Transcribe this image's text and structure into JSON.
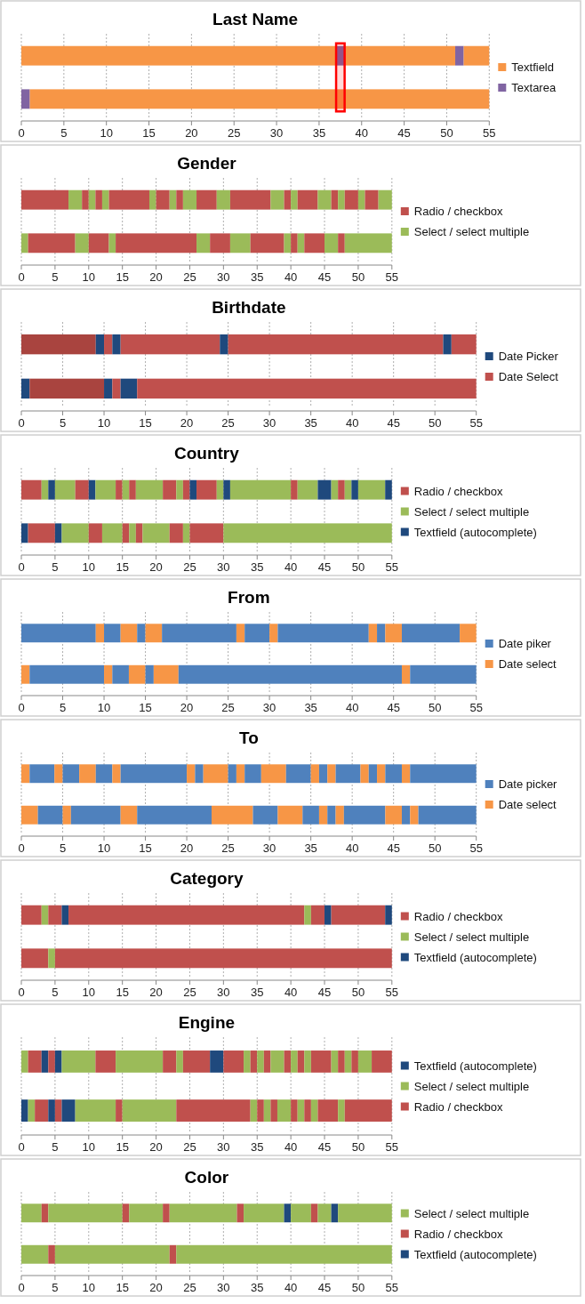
{
  "chart_data": [
    {
      "type": "bar",
      "title": "Last Name",
      "orientation": "horizontal",
      "stacked": true,
      "categories": [
        null,
        null
      ],
      "xlim": [
        0,
        55
      ],
      "xticks": [
        0,
        5,
        10,
        15,
        20,
        25,
        30,
        35,
        40,
        45,
        50,
        55
      ],
      "grid": "x",
      "legend": "right",
      "bands": [
        {
          "axis": "x",
          "from": 37,
          "to": 38,
          "color": "#ff0000"
        }
      ],
      "series": [
        {
          "name": "Textfield",
          "color": "#f79646",
          "values": [
            null,
            null
          ]
        },
        {
          "name": "Textarea",
          "color": "#8064a2",
          "values": [
            null,
            null
          ]
        },
        {
          "color": "#f79646",
          "values": [
            37,
            null
          ]
        },
        {
          "color": "#8064a2",
          "values": [
            1,
            null
          ]
        },
        {
          "color": "#f79646",
          "values": [
            13,
            null
          ]
        },
        {
          "color": "#8064a2",
          "values": [
            1,
            null
          ]
        },
        {
          "color": "#f79646",
          "values": [
            3,
            null
          ]
        },
        {
          "color": "#8064a2",
          "values": [
            null,
            1
          ]
        },
        {
          "color": "#f79646",
          "values": [
            null,
            54
          ]
        }
      ]
    },
    {
      "type": "bar",
      "title": "Gender",
      "orientation": "horizontal",
      "stacked": true,
      "categories": [
        null,
        null
      ],
      "xlim": [
        0,
        55
      ],
      "xticks": [
        0,
        5,
        10,
        15,
        20,
        25,
        30,
        35,
        40,
        45,
        50,
        55
      ],
      "grid": "x",
      "legend": "right",
      "series": [
        {
          "name": "Radio / checkbox",
          "color": "#c0504d",
          "values": [
            null,
            null
          ]
        },
        {
          "name": "Select / select multiple",
          "color": "#9bbb59",
          "values": [
            null,
            null
          ]
        },
        {
          "color": "#c0504d",
          "values": [
            7,
            null
          ]
        },
        {
          "color": "#9bbb59",
          "values": [
            2,
            null
          ]
        },
        {
          "color": "#c0504d",
          "values": [
            1,
            null
          ]
        },
        {
          "color": "#9bbb59",
          "values": [
            1,
            null
          ]
        },
        {
          "color": "#c0504d",
          "values": [
            1,
            null
          ]
        },
        {
          "color": "#9bbb59",
          "values": [
            1,
            null
          ]
        },
        {
          "color": "#c0504d",
          "values": [
            6,
            null
          ]
        },
        {
          "color": "#9bbb59",
          "values": [
            1,
            null
          ]
        },
        {
          "color": "#c0504d",
          "values": [
            2,
            null
          ]
        },
        {
          "color": "#9bbb59",
          "values": [
            1,
            null
          ]
        },
        {
          "color": "#c0504d",
          "values": [
            1,
            null
          ]
        },
        {
          "color": "#9bbb59",
          "values": [
            2,
            null
          ]
        },
        {
          "color": "#c0504d",
          "values": [
            3,
            null
          ]
        },
        {
          "color": "#9bbb59",
          "values": [
            2,
            null
          ]
        },
        {
          "color": "#c0504d",
          "values": [
            6,
            null
          ]
        },
        {
          "color": "#9bbb59",
          "values": [
            2,
            null
          ]
        },
        {
          "color": "#c0504d",
          "values": [
            1,
            null
          ]
        },
        {
          "color": "#9bbb59",
          "values": [
            1,
            null
          ]
        },
        {
          "color": "#c0504d",
          "values": [
            3,
            null
          ]
        },
        {
          "color": "#9bbb59",
          "values": [
            2,
            null
          ]
        },
        {
          "color": "#c0504d",
          "values": [
            1,
            null
          ]
        },
        {
          "color": "#9bbb59",
          "values": [
            1,
            null
          ]
        },
        {
          "color": "#c0504d",
          "values": [
            2,
            null
          ]
        },
        {
          "color": "#9bbb59",
          "values": [
            1,
            null
          ]
        },
        {
          "color": "#c0504d",
          "values": [
            2,
            null
          ]
        },
        {
          "color": "#9bbb59",
          "values": [
            2,
            null
          ]
        },
        {
          "color": "#9bbb59",
          "values": [
            null,
            1
          ]
        },
        {
          "color": "#c0504d",
          "values": [
            null,
            7
          ]
        },
        {
          "color": "#9bbb59",
          "values": [
            null,
            2
          ]
        },
        {
          "color": "#c0504d",
          "values": [
            null,
            3
          ]
        },
        {
          "color": "#9bbb59",
          "values": [
            null,
            1
          ]
        },
        {
          "color": "#c0504d",
          "values": [
            null,
            12
          ]
        },
        {
          "color": "#9bbb59",
          "values": [
            null,
            2
          ]
        },
        {
          "color": "#c0504d",
          "values": [
            null,
            3
          ]
        },
        {
          "color": "#9bbb59",
          "values": [
            null,
            3
          ]
        },
        {
          "color": "#c0504d",
          "values": [
            null,
            5
          ]
        },
        {
          "color": "#9bbb59",
          "values": [
            null,
            1
          ]
        },
        {
          "color": "#c0504d",
          "values": [
            null,
            1
          ]
        },
        {
          "color": "#9bbb59",
          "values": [
            null,
            1
          ]
        },
        {
          "color": "#c0504d",
          "values": [
            null,
            3
          ]
        },
        {
          "color": "#9bbb59",
          "values": [
            null,
            2
          ]
        },
        {
          "color": "#c0504d",
          "values": [
            null,
            1
          ]
        },
        {
          "color": "#9bbb59",
          "values": [
            null,
            7
          ]
        }
      ]
    },
    {
      "type": "bar",
      "title": "Birthdate",
      "orientation": "horizontal",
      "stacked": true,
      "categories": [
        null,
        null
      ],
      "xlim": [
        0,
        55
      ],
      "xticks": [
        0,
        5,
        10,
        15,
        20,
        25,
        30,
        35,
        40,
        45,
        50,
        55
      ],
      "grid": "x",
      "legend": "right",
      "series": [
        {
          "name": "Date Picker",
          "color": "#1f497d",
          "values": [
            null,
            null
          ]
        },
        {
          "name": "Date Select",
          "color": "#c0504d",
          "values": [
            null,
            null
          ]
        },
        {
          "color": "#a9443f",
          "values": [
            9,
            null
          ]
        },
        {
          "color": "#1f497d",
          "values": [
            1,
            null
          ]
        },
        {
          "color": "#c0504d",
          "values": [
            1,
            null
          ]
        },
        {
          "color": "#1f497d",
          "values": [
            1,
            null
          ]
        },
        {
          "color": "#c0504d",
          "values": [
            12,
            null
          ]
        },
        {
          "color": "#1f497d",
          "values": [
            1,
            null
          ]
        },
        {
          "color": "#c0504d",
          "values": [
            26,
            null
          ]
        },
        {
          "color": "#1f497d",
          "values": [
            1,
            null
          ]
        },
        {
          "color": "#c0504d",
          "values": [
            3,
            null
          ]
        },
        {
          "color": "#1f497d",
          "values": [
            null,
            1
          ]
        },
        {
          "color": "#a9443f",
          "values": [
            null,
            9
          ]
        },
        {
          "color": "#1f497d",
          "values": [
            null,
            1
          ]
        },
        {
          "color": "#c0504d",
          "values": [
            null,
            1
          ]
        },
        {
          "color": "#1f497d",
          "values": [
            null,
            2
          ]
        },
        {
          "color": "#c0504d",
          "values": [
            null,
            41
          ]
        }
      ]
    },
    {
      "type": "bar",
      "title": "Country",
      "orientation": "horizontal",
      "stacked": true,
      "categories": [
        null,
        null
      ],
      "xlim": [
        0,
        55
      ],
      "xticks": [
        0,
        5,
        10,
        15,
        20,
        25,
        30,
        35,
        40,
        45,
        50,
        55
      ],
      "grid": "x",
      "legend": "right",
      "series": [
        {
          "name": "Radio / checkbox",
          "color": "#c0504d",
          "values": [
            null,
            null
          ]
        },
        {
          "name": "Select / select multiple",
          "color": "#9bbb59",
          "values": [
            null,
            null
          ]
        },
        {
          "name": "Textfield (autocomplete)",
          "color": "#1f497d",
          "values": [
            null,
            null
          ]
        },
        {
          "color": "#c0504d",
          "values": [
            3,
            null
          ]
        },
        {
          "color": "#9bbb59",
          "values": [
            1,
            null
          ]
        },
        {
          "color": "#1f497d",
          "values": [
            1,
            null
          ]
        },
        {
          "color": "#9bbb59",
          "values": [
            3,
            null
          ]
        },
        {
          "color": "#c0504d",
          "values": [
            2,
            null
          ]
        },
        {
          "color": "#1f497d",
          "values": [
            1,
            null
          ]
        },
        {
          "color": "#9bbb59",
          "values": [
            3,
            null
          ]
        },
        {
          "color": "#c0504d",
          "values": [
            1,
            null
          ]
        },
        {
          "color": "#9bbb59",
          "values": [
            1,
            null
          ]
        },
        {
          "color": "#c0504d",
          "values": [
            1,
            null
          ]
        },
        {
          "color": "#9bbb59",
          "values": [
            4,
            null
          ]
        },
        {
          "color": "#c0504d",
          "values": [
            2,
            null
          ]
        },
        {
          "color": "#9bbb59",
          "values": [
            1,
            null
          ]
        },
        {
          "color": "#c0504d",
          "values": [
            1,
            null
          ]
        },
        {
          "color": "#1f497d",
          "values": [
            1,
            null
          ]
        },
        {
          "color": "#c0504d",
          "values": [
            3,
            null
          ]
        },
        {
          "color": "#9bbb59",
          "values": [
            1,
            null
          ]
        },
        {
          "color": "#1f497d",
          "values": [
            1,
            null
          ]
        },
        {
          "color": "#9bbb59",
          "values": [
            9,
            null
          ]
        },
        {
          "color": "#c0504d",
          "values": [
            1,
            null
          ]
        },
        {
          "color": "#9bbb59",
          "values": [
            3,
            null
          ]
        },
        {
          "color": "#1f497d",
          "values": [
            2,
            null
          ]
        },
        {
          "color": "#9bbb59",
          "values": [
            1,
            null
          ]
        },
        {
          "color": "#c0504d",
          "values": [
            1,
            null
          ]
        },
        {
          "color": "#9bbb59",
          "values": [
            1,
            null
          ]
        },
        {
          "color": "#1f497d",
          "values": [
            1,
            null
          ]
        },
        {
          "color": "#9bbb59",
          "values": [
            4,
            null
          ]
        },
        {
          "color": "#1f497d",
          "values": [
            1,
            null
          ]
        },
        {
          "color": "#1f497d",
          "values": [
            null,
            1
          ]
        },
        {
          "color": "#c0504d",
          "values": [
            null,
            4
          ]
        },
        {
          "color": "#1f497d",
          "values": [
            null,
            1
          ]
        },
        {
          "color": "#9bbb59",
          "values": [
            null,
            4
          ]
        },
        {
          "color": "#c0504d",
          "values": [
            null,
            2
          ]
        },
        {
          "color": "#9bbb59",
          "values": [
            null,
            3
          ]
        },
        {
          "color": "#c0504d",
          "values": [
            null,
            1
          ]
        },
        {
          "color": "#9bbb59",
          "values": [
            null,
            1
          ]
        },
        {
          "color": "#c0504d",
          "values": [
            null,
            1
          ]
        },
        {
          "color": "#9bbb59",
          "values": [
            null,
            4
          ]
        },
        {
          "color": "#c0504d",
          "values": [
            null,
            2
          ]
        },
        {
          "color": "#9bbb59",
          "values": [
            null,
            1
          ]
        },
        {
          "color": "#c0504d",
          "values": [
            null,
            5
          ]
        },
        {
          "color": "#9bbb59",
          "values": [
            null,
            25
          ]
        }
      ]
    },
    {
      "type": "bar",
      "title": "From",
      "orientation": "horizontal",
      "stacked": true,
      "categories": [
        null,
        null
      ],
      "xlim": [
        0,
        55
      ],
      "xticks": [
        0,
        5,
        10,
        15,
        20,
        25,
        30,
        35,
        40,
        45,
        50,
        55
      ],
      "grid": "x",
      "legend": "right",
      "series": [
        {
          "name": "Date piker",
          "color": "#4f81bd",
          "values": [
            null,
            null
          ]
        },
        {
          "name": "Date select",
          "color": "#f79646",
          "values": [
            null,
            null
          ]
        },
        {
          "color": "#4f81bd",
          "values": [
            9,
            null
          ]
        },
        {
          "color": "#f79646",
          "values": [
            1,
            null
          ]
        },
        {
          "color": "#4f81bd",
          "values": [
            2,
            null
          ]
        },
        {
          "color": "#f79646",
          "values": [
            2,
            null
          ]
        },
        {
          "color": "#4f81bd",
          "values": [
            1,
            null
          ]
        },
        {
          "color": "#f79646",
          "values": [
            2,
            null
          ]
        },
        {
          "color": "#4f81bd",
          "values": [
            9,
            null
          ]
        },
        {
          "color": "#f79646",
          "values": [
            1,
            null
          ]
        },
        {
          "color": "#4f81bd",
          "values": [
            3,
            null
          ]
        },
        {
          "color": "#f79646",
          "values": [
            1,
            null
          ]
        },
        {
          "color": "#4f81bd",
          "values": [
            11,
            null
          ]
        },
        {
          "color": "#f79646",
          "values": [
            1,
            null
          ]
        },
        {
          "color": "#4f81bd",
          "values": [
            1,
            null
          ]
        },
        {
          "color": "#f79646",
          "values": [
            2,
            null
          ]
        },
        {
          "color": "#4f81bd",
          "values": [
            7,
            null
          ]
        },
        {
          "color": "#f79646",
          "values": [
            2,
            null
          ]
        },
        {
          "color": "#f79646",
          "values": [
            null,
            1
          ]
        },
        {
          "color": "#4f81bd",
          "values": [
            null,
            9
          ]
        },
        {
          "color": "#f79646",
          "values": [
            null,
            1
          ]
        },
        {
          "color": "#4f81bd",
          "values": [
            null,
            2
          ]
        },
        {
          "color": "#f79646",
          "values": [
            null,
            2
          ]
        },
        {
          "color": "#4f81bd",
          "values": [
            null,
            1
          ]
        },
        {
          "color": "#f79646",
          "values": [
            null,
            3
          ]
        },
        {
          "color": "#4f81bd",
          "values": [
            null,
            27
          ]
        },
        {
          "color": "#f79646",
          "values": [
            null,
            1
          ]
        },
        {
          "color": "#4f81bd",
          "values": [
            null,
            8
          ]
        }
      ]
    },
    {
      "type": "bar",
      "title": "To",
      "orientation": "horizontal",
      "stacked": true,
      "categories": [
        null,
        null
      ],
      "xlim": [
        0,
        55
      ],
      "xticks": [
        0,
        5,
        10,
        15,
        20,
        25,
        30,
        35,
        40,
        45,
        50,
        55
      ],
      "grid": "x",
      "legend": "right",
      "series": [
        {
          "name": "Date picker",
          "color": "#4f81bd",
          "values": [
            null,
            null
          ]
        },
        {
          "name": "Date select",
          "color": "#f79646",
          "values": [
            null,
            null
          ]
        },
        {
          "color": "#f79646",
          "values": [
            1,
            null
          ]
        },
        {
          "color": "#4f81bd",
          "values": [
            3,
            null
          ]
        },
        {
          "color": "#f79646",
          "values": [
            1,
            null
          ]
        },
        {
          "color": "#4f81bd",
          "values": [
            2,
            null
          ]
        },
        {
          "color": "#f79646",
          "values": [
            2,
            null
          ]
        },
        {
          "color": "#4f81bd",
          "values": [
            2,
            null
          ]
        },
        {
          "color": "#f79646",
          "values": [
            1,
            null
          ]
        },
        {
          "color": "#4f81bd",
          "values": [
            8,
            null
          ]
        },
        {
          "color": "#f79646",
          "values": [
            1,
            null
          ]
        },
        {
          "color": "#4f81bd",
          "values": [
            1,
            null
          ]
        },
        {
          "color": "#f79646",
          "values": [
            3,
            null
          ]
        },
        {
          "color": "#4f81bd",
          "values": [
            1,
            null
          ]
        },
        {
          "color": "#f79646",
          "values": [
            1,
            null
          ]
        },
        {
          "color": "#4f81bd",
          "values": [
            2,
            null
          ]
        },
        {
          "color": "#f79646",
          "values": [
            3,
            null
          ]
        },
        {
          "color": "#4f81bd",
          "values": [
            3,
            null
          ]
        },
        {
          "color": "#f79646",
          "values": [
            1,
            null
          ]
        },
        {
          "color": "#4f81bd",
          "values": [
            1,
            null
          ]
        },
        {
          "color": "#f79646",
          "values": [
            1,
            null
          ]
        },
        {
          "color": "#4f81bd",
          "values": [
            3,
            null
          ]
        },
        {
          "color": "#f79646",
          "values": [
            1,
            null
          ]
        },
        {
          "color": "#4f81bd",
          "values": [
            1,
            null
          ]
        },
        {
          "color": "#f79646",
          "values": [
            1,
            null
          ]
        },
        {
          "color": "#4f81bd",
          "values": [
            2,
            null
          ]
        },
        {
          "color": "#f79646",
          "values": [
            1,
            null
          ]
        },
        {
          "color": "#4f81bd",
          "values": [
            8,
            null
          ]
        },
        {
          "color": "#f79646",
          "values": [
            null,
            2
          ]
        },
        {
          "color": "#4f81bd",
          "values": [
            null,
            3
          ]
        },
        {
          "color": "#f79646",
          "values": [
            null,
            1
          ]
        },
        {
          "color": "#4f81bd",
          "values": [
            null,
            6
          ]
        },
        {
          "color": "#f79646",
          "values": [
            null,
            2
          ]
        },
        {
          "color": "#4f81bd",
          "values": [
            null,
            9
          ]
        },
        {
          "color": "#f79646",
          "values": [
            null,
            5
          ]
        },
        {
          "color": "#4f81bd",
          "values": [
            null,
            3
          ]
        },
        {
          "color": "#f79646",
          "values": [
            null,
            3
          ]
        },
        {
          "color": "#4f81bd",
          "values": [
            null,
            2
          ]
        },
        {
          "color": "#f79646",
          "values": [
            null,
            1
          ]
        },
        {
          "color": "#4f81bd",
          "values": [
            null,
            1
          ]
        },
        {
          "color": "#f79646",
          "values": [
            null,
            1
          ]
        },
        {
          "color": "#4f81bd",
          "values": [
            null,
            5
          ]
        },
        {
          "color": "#f79646",
          "values": [
            null,
            2
          ]
        },
        {
          "color": "#4f81bd",
          "values": [
            null,
            1
          ]
        },
        {
          "color": "#f79646",
          "values": [
            null,
            1
          ]
        },
        {
          "color": "#4f81bd",
          "values": [
            null,
            7
          ]
        }
      ]
    },
    {
      "type": "bar",
      "title": "Category",
      "orientation": "horizontal",
      "stacked": true,
      "categories": [
        null,
        null
      ],
      "xlim": [
        0,
        55
      ],
      "xticks": [
        0,
        5,
        10,
        15,
        20,
        25,
        30,
        35,
        40,
        45,
        50,
        55
      ],
      "grid": "x",
      "legend": "right",
      "series": [
        {
          "name": "Radio / checkbox",
          "color": "#c0504d",
          "values": [
            null,
            null
          ]
        },
        {
          "name": "Select / select multiple",
          "color": "#9bbb59",
          "values": [
            null,
            null
          ]
        },
        {
          "name": "Textfield (autocomplete)",
          "color": "#1f497d",
          "values": [
            null,
            null
          ]
        },
        {
          "color": "#c0504d",
          "values": [
            3,
            null
          ]
        },
        {
          "color": "#9bbb59",
          "values": [
            1,
            null
          ]
        },
        {
          "color": "#c0504d",
          "values": [
            2,
            null
          ]
        },
        {
          "color": "#1f497d",
          "values": [
            1,
            null
          ]
        },
        {
          "color": "#c0504d",
          "values": [
            35,
            null
          ]
        },
        {
          "color": "#9bbb59",
          "values": [
            1,
            null
          ]
        },
        {
          "color": "#c0504d",
          "values": [
            2,
            null
          ]
        },
        {
          "color": "#1f497d",
          "values": [
            1,
            null
          ]
        },
        {
          "color": "#c0504d",
          "values": [
            8,
            null
          ]
        },
        {
          "color": "#1f497d",
          "values": [
            1,
            null
          ]
        },
        {
          "color": "#c0504d",
          "values": [
            null,
            4
          ]
        },
        {
          "color": "#9bbb59",
          "values": [
            null,
            1
          ]
        },
        {
          "color": "#c0504d",
          "values": [
            null,
            50
          ]
        }
      ]
    },
    {
      "type": "bar",
      "title": "Engine",
      "orientation": "horizontal",
      "stacked": true,
      "categories": [
        null,
        null
      ],
      "xlim": [
        0,
        55
      ],
      "xticks": [
        0,
        5,
        10,
        15,
        20,
        25,
        30,
        35,
        40,
        45,
        50,
        55
      ],
      "grid": "x",
      "legend": "right",
      "series": [
        {
          "name": "Textfield (autocomplete)",
          "color": "#1f497d",
          "values": [
            null,
            null
          ]
        },
        {
          "name": "Select / select multiple",
          "color": "#9bbb59",
          "values": [
            null,
            null
          ]
        },
        {
          "name": "Radio / checkbox",
          "color": "#c0504d",
          "values": [
            null,
            null
          ]
        },
        {
          "color": "#9bbb59",
          "values": [
            1,
            null
          ]
        },
        {
          "color": "#c0504d",
          "values": [
            2,
            null
          ]
        },
        {
          "color": "#1f497d",
          "values": [
            1,
            null
          ]
        },
        {
          "color": "#c0504d",
          "values": [
            1,
            null
          ]
        },
        {
          "color": "#1f497d",
          "values": [
            1,
            null
          ]
        },
        {
          "color": "#9bbb59",
          "values": [
            5,
            null
          ]
        },
        {
          "color": "#c0504d",
          "values": [
            3,
            null
          ]
        },
        {
          "color": "#9bbb59",
          "values": [
            7,
            null
          ]
        },
        {
          "color": "#c0504d",
          "values": [
            2,
            null
          ]
        },
        {
          "color": "#9bbb59",
          "values": [
            1,
            null
          ]
        },
        {
          "color": "#c0504d",
          "values": [
            4,
            null
          ]
        },
        {
          "color": "#1f497d",
          "values": [
            2,
            null
          ]
        },
        {
          "color": "#c0504d",
          "values": [
            3,
            null
          ]
        },
        {
          "color": "#9bbb59",
          "values": [
            1,
            null
          ]
        },
        {
          "color": "#c0504d",
          "values": [
            1,
            null
          ]
        },
        {
          "color": "#9bbb59",
          "values": [
            1,
            null
          ]
        },
        {
          "color": "#c0504d",
          "values": [
            1,
            null
          ]
        },
        {
          "color": "#9bbb59",
          "values": [
            2,
            null
          ]
        },
        {
          "color": "#c0504d",
          "values": [
            1,
            null
          ]
        },
        {
          "color": "#9bbb59",
          "values": [
            1,
            null
          ]
        },
        {
          "color": "#c0504d",
          "values": [
            1,
            null
          ]
        },
        {
          "color": "#9bbb59",
          "values": [
            1,
            null
          ]
        },
        {
          "color": "#c0504d",
          "values": [
            3,
            null
          ]
        },
        {
          "color": "#9bbb59",
          "values": [
            1,
            null
          ]
        },
        {
          "color": "#c0504d",
          "values": [
            1,
            null
          ]
        },
        {
          "color": "#9bbb59",
          "values": [
            1,
            null
          ]
        },
        {
          "color": "#c0504d",
          "values": [
            1,
            null
          ]
        },
        {
          "color": "#9bbb59",
          "values": [
            2,
            null
          ]
        },
        {
          "color": "#c0504d",
          "values": [
            3,
            null
          ]
        },
        {
          "color": "#1f497d",
          "values": [
            null,
            1
          ]
        },
        {
          "color": "#9bbb59",
          "values": [
            null,
            1
          ]
        },
        {
          "color": "#c0504d",
          "values": [
            null,
            2
          ]
        },
        {
          "color": "#1f497d",
          "values": [
            null,
            1
          ]
        },
        {
          "color": "#c0504d",
          "values": [
            null,
            1
          ]
        },
        {
          "color": "#1f497d",
          "values": [
            null,
            2
          ]
        },
        {
          "color": "#9bbb59",
          "values": [
            null,
            6
          ]
        },
        {
          "color": "#c0504d",
          "values": [
            null,
            1
          ]
        },
        {
          "color": "#9bbb59",
          "values": [
            null,
            8
          ]
        },
        {
          "color": "#c0504d",
          "values": [
            null,
            11
          ]
        },
        {
          "color": "#9bbb59",
          "values": [
            null,
            1
          ]
        },
        {
          "color": "#c0504d",
          "values": [
            null,
            1
          ]
        },
        {
          "color": "#9bbb59",
          "values": [
            null,
            1
          ]
        },
        {
          "color": "#c0504d",
          "values": [
            null,
            1
          ]
        },
        {
          "color": "#9bbb59",
          "values": [
            null,
            2
          ]
        },
        {
          "color": "#c0504d",
          "values": [
            null,
            1
          ]
        },
        {
          "color": "#9bbb59",
          "values": [
            null,
            1
          ]
        },
        {
          "color": "#c0504d",
          "values": [
            null,
            1
          ]
        },
        {
          "color": "#9bbb59",
          "values": [
            null,
            1
          ]
        },
        {
          "color": "#c0504d",
          "values": [
            null,
            3
          ]
        },
        {
          "color": "#9bbb59",
          "values": [
            null,
            1
          ]
        },
        {
          "color": "#c0504d",
          "values": [
            null,
            7
          ]
        }
      ]
    },
    {
      "type": "bar",
      "title": "Color",
      "orientation": "horizontal",
      "stacked": true,
      "categories": [
        null,
        null
      ],
      "xlim": [
        0,
        55
      ],
      "xticks": [
        0,
        5,
        10,
        15,
        20,
        25,
        30,
        35,
        40,
        45,
        50,
        55
      ],
      "grid": "x",
      "legend": "right",
      "series": [
        {
          "name": "Select / select multiple",
          "color": "#9bbb59",
          "values": [
            null,
            null
          ]
        },
        {
          "name": "Radio / checkbox",
          "color": "#c0504d",
          "values": [
            null,
            null
          ]
        },
        {
          "name": "Textfield (autocomplete)",
          "color": "#1f497d",
          "values": [
            null,
            null
          ]
        },
        {
          "color": "#9bbb59",
          "values": [
            3,
            null
          ]
        },
        {
          "color": "#c0504d",
          "values": [
            1,
            null
          ]
        },
        {
          "color": "#9bbb59",
          "values": [
            11,
            null
          ]
        },
        {
          "color": "#c0504d",
          "values": [
            1,
            null
          ]
        },
        {
          "color": "#9bbb59",
          "values": [
            5,
            null
          ]
        },
        {
          "color": "#c0504d",
          "values": [
            1,
            null
          ]
        },
        {
          "color": "#9bbb59",
          "values": [
            10,
            null
          ]
        },
        {
          "color": "#c0504d",
          "values": [
            1,
            null
          ]
        },
        {
          "color": "#9bbb59",
          "values": [
            6,
            null
          ]
        },
        {
          "color": "#1f497d",
          "values": [
            1,
            null
          ]
        },
        {
          "color": "#9bbb59",
          "values": [
            3,
            null
          ]
        },
        {
          "color": "#c0504d",
          "values": [
            1,
            null
          ]
        },
        {
          "color": "#9bbb59",
          "values": [
            2,
            null
          ]
        },
        {
          "color": "#1f497d",
          "values": [
            1,
            null
          ]
        },
        {
          "color": "#9bbb59",
          "values": [
            8,
            null
          ]
        },
        {
          "color": "#9bbb59",
          "values": [
            null,
            4
          ]
        },
        {
          "color": "#c0504d",
          "values": [
            null,
            1
          ]
        },
        {
          "color": "#9bbb59",
          "values": [
            null,
            17
          ]
        },
        {
          "color": "#c0504d",
          "values": [
            null,
            1
          ]
        },
        {
          "color": "#9bbb59",
          "values": [
            null,
            32
          ]
        }
      ]
    }
  ]
}
